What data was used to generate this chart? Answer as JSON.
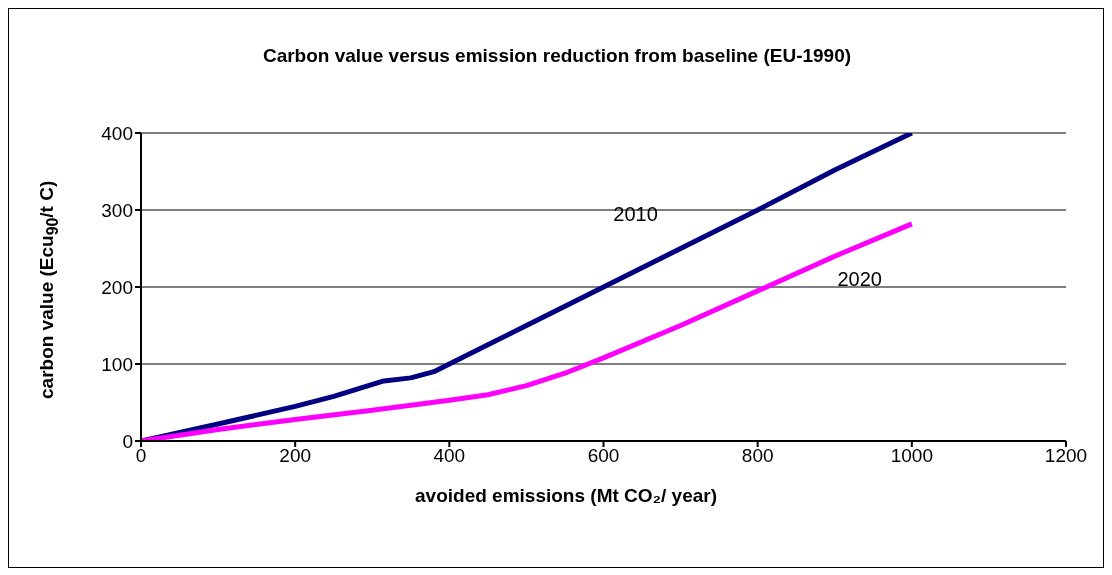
{
  "chart_data": {
    "type": "line",
    "title": "Carbon value versus emission reduction from baseline (EU-1990)",
    "xlabel": "avoided emissions (Mt CO₂/ year)",
    "ylabel": "carbon value (Ecu$_{90}$/t C)",
    "series": [
      {
        "name": "2010",
        "color": "#000080",
        "x": [
          0,
          100,
          200,
          250,
          315,
          350,
          380,
          400,
          450,
          500,
          600,
          700,
          800,
          900,
          1000
        ],
        "values": [
          0,
          22,
          45,
          58,
          78,
          82,
          90,
          100,
          125,
          150,
          200,
          250,
          300,
          352,
          400
        ]
      },
      {
        "name": "2020",
        "color": "#ff00ff",
        "x": [
          0,
          100,
          200,
          300,
          400,
          450,
          500,
          550,
          600,
          700,
          800,
          900,
          1000
        ],
        "values": [
          0,
          15,
          28,
          40,
          53,
          60,
          72,
          88,
          108,
          150,
          195,
          240,
          282
        ]
      }
    ],
    "xlim": [
      0,
      1200
    ],
    "xticks": [
      0,
      200,
      400,
      600,
      800,
      1000,
      1200
    ],
    "ylim": [
      0,
      400
    ],
    "yticks": [
      0,
      100,
      200,
      300,
      400
    ],
    "grid": "y",
    "legend": false,
    "marker": "none",
    "line_style": "solid"
  }
}
